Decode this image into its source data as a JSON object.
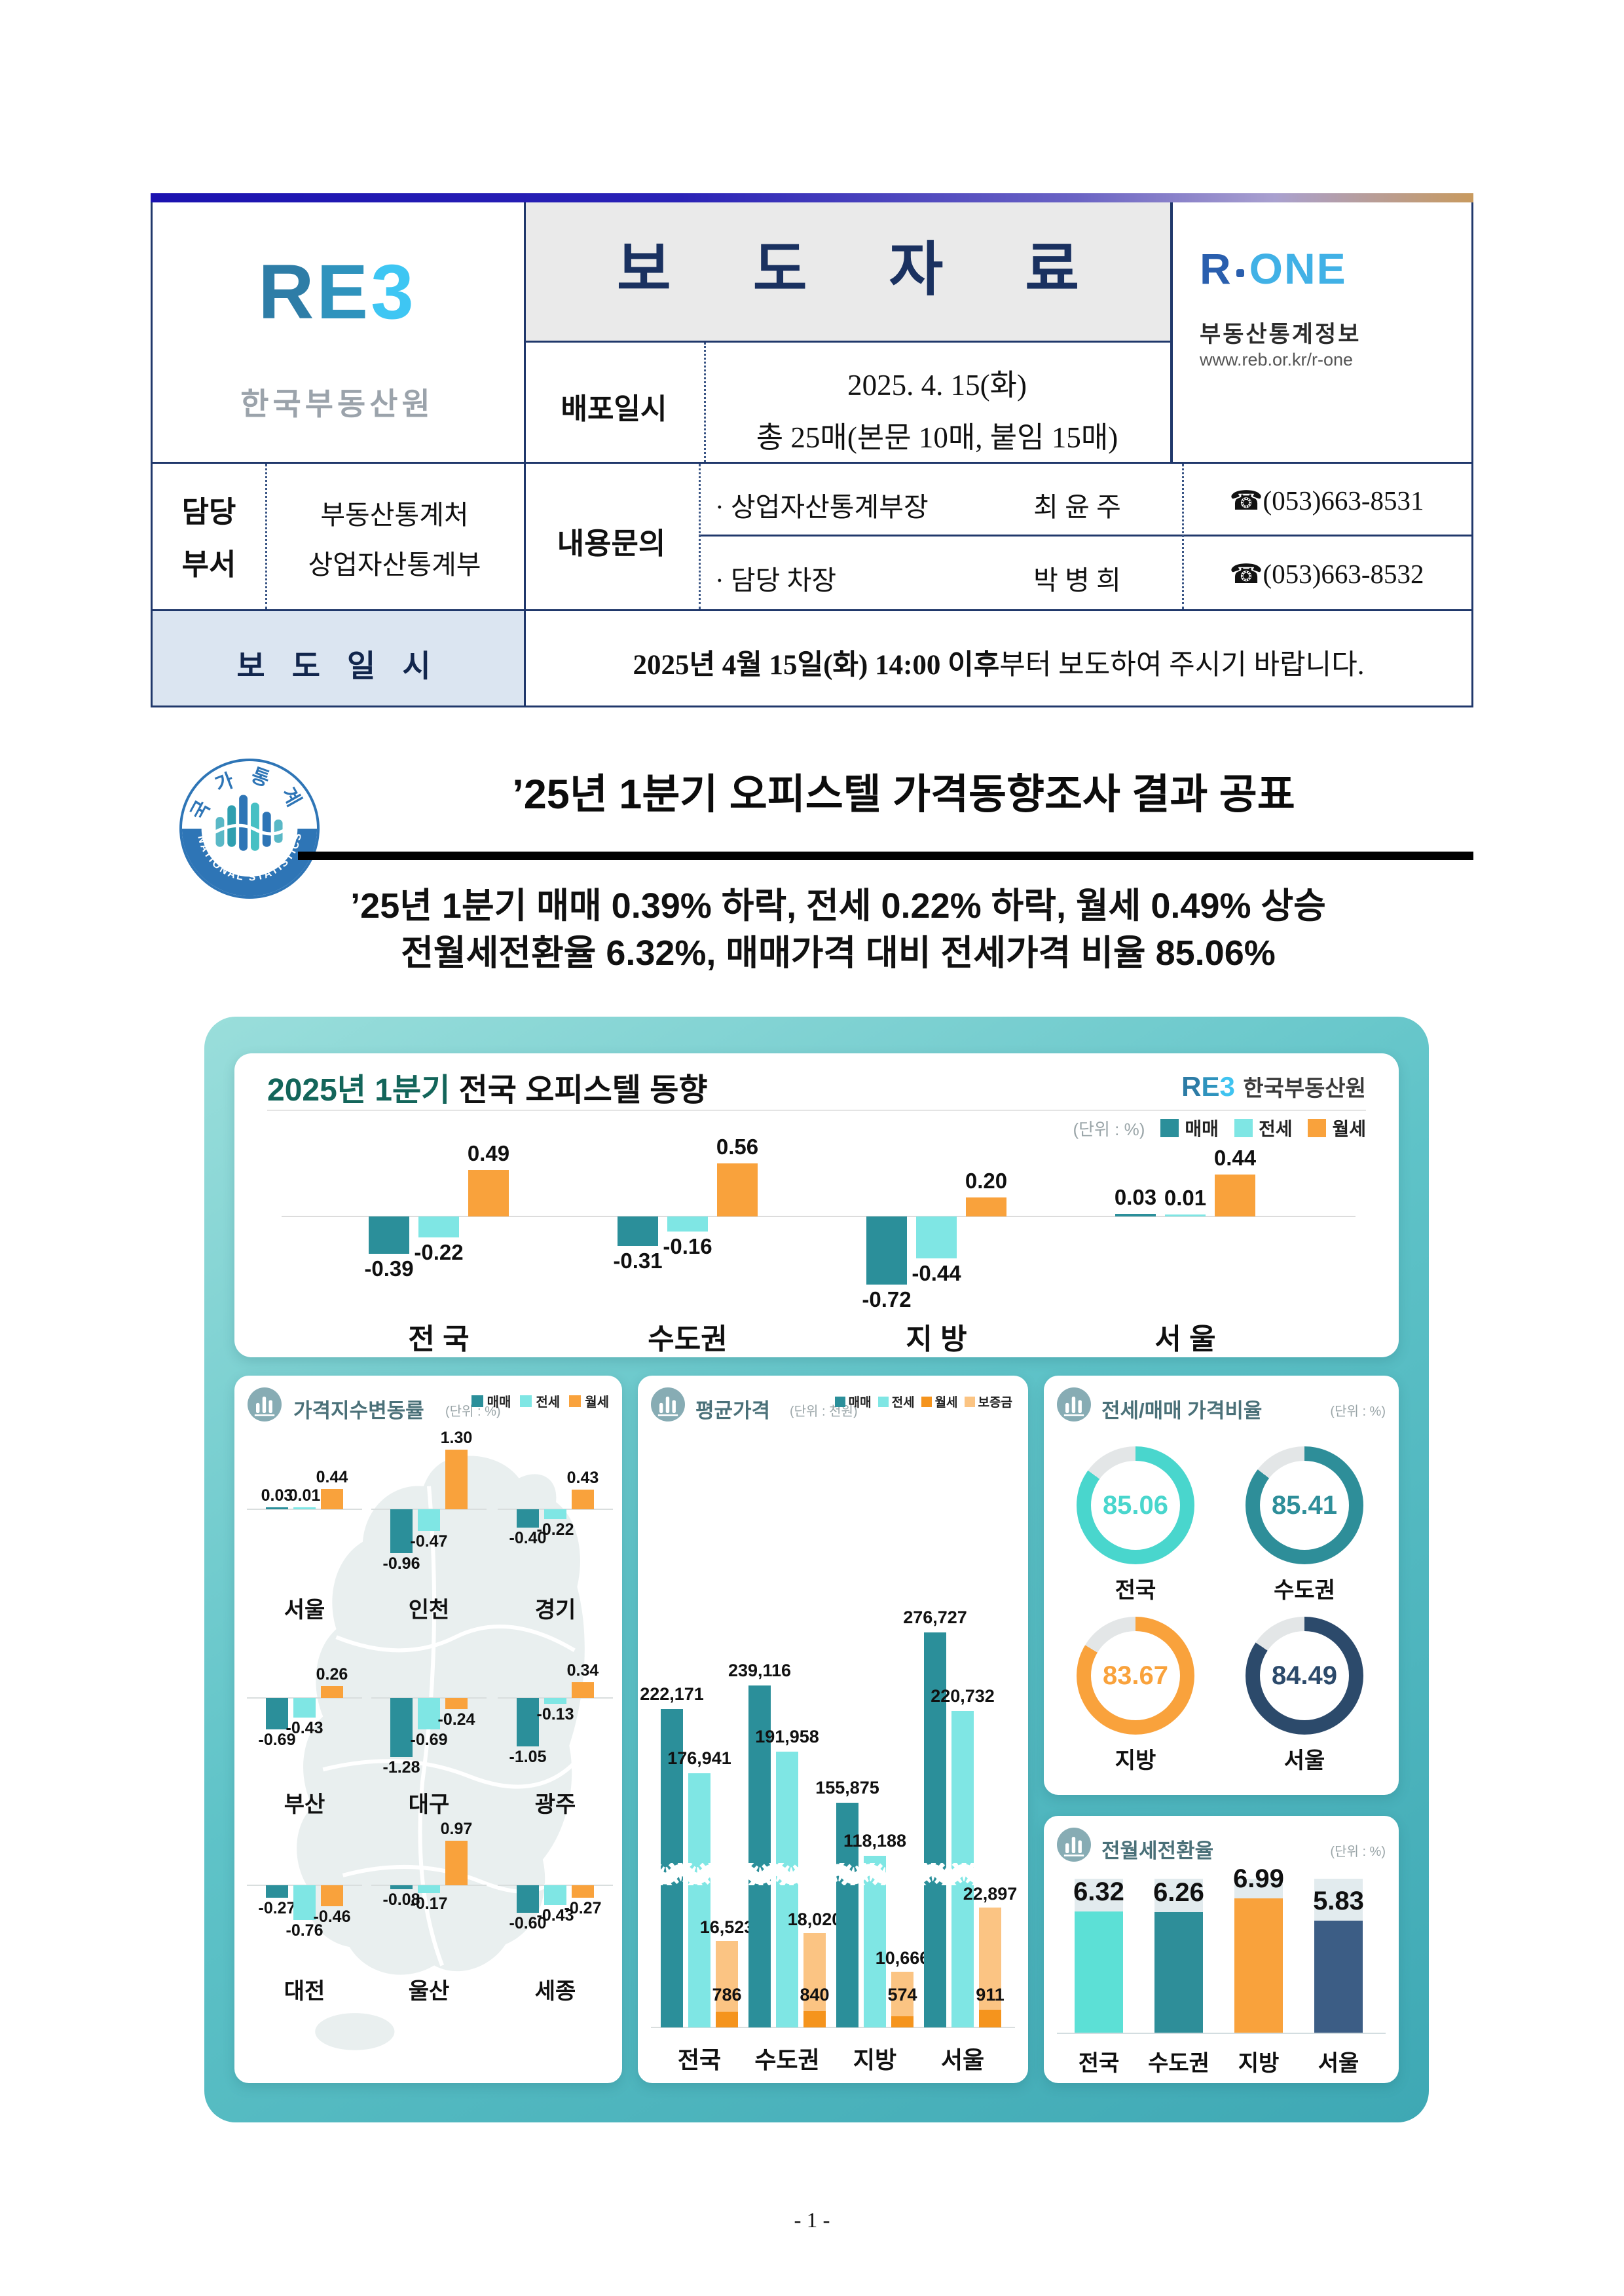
{
  "page": {
    "footer": "- 1 -"
  },
  "header": {
    "logo": {
      "l1": "R",
      "l2": "E",
      "l3": "3",
      "subtitle": "한국부동산원"
    },
    "title": "보 도 자 료",
    "release": {
      "label": "배포일시",
      "date": "2025. 4. 15(화)",
      "pages": "총 25매(본문 10매, 붙임 15매)"
    },
    "rone": {
      "logo_left": "R",
      "logo_right": "ONE",
      "name": "부동산통계정보",
      "url": "www.reb.or.kr/r-one"
    },
    "dept": {
      "label1": "담당",
      "label2": "부서",
      "office1": "부동산통계처",
      "office2": "상업자산통계부",
      "contact_label": "내용문의",
      "contacts": [
        {
          "role": "· 상업자산통계부장",
          "name": "최 윤 주",
          "phone": "☎(053)663-8531"
        },
        {
          "role": "· 담당 차장",
          "name": "박 병 희",
          "phone": "☎(053)663-8532"
        }
      ]
    },
    "embargo": {
      "label": "보 도 일 시",
      "bold": "2025년 4월 15일(화) 14:00 이후",
      "rest": "부터 보도하여 주시기 바랍니다."
    }
  },
  "headline": {
    "badge": {
      "top": "국가통계",
      "bottom": "NATIONAL STATISTICS"
    },
    "title": "’25년 1분기 오피스텔 가격동향조사 결과 공표",
    "sub1": "’25년 1분기 매매 0.39% 하락, 전세 0.22% 하락, 월세 0.49% 상승",
    "sub2": "전월세전환율 6.32%, 매매가격 대비 전세가격 비율 85.06%"
  },
  "infographic": {
    "main": {
      "title_accent": "2025년 1분기",
      "title_rest": " 전국 오피스텔 동향",
      "accent_color": "#13655a",
      "logo_l1": "R",
      "logo_l2": "E",
      "logo_l3": "3",
      "logo_name": "한국부동산원"
    }
  },
  "chart_data": [
    {
      "id": "trend-main",
      "type": "bar",
      "title": "2025년 1분기 전국 오피스텔 동향",
      "unit_label": "(단위 : %)",
      "categories": [
        "전 국",
        "수도권",
        "지 방",
        "서 울"
      ],
      "series": [
        {
          "name": "매매",
          "color": "#2b8f9a",
          "values": [
            -0.39,
            -0.31,
            -0.72,
            0.03
          ]
        },
        {
          "name": "전세",
          "color": "#7fe6e4",
          "values": [
            -0.22,
            -0.16,
            -0.44,
            0.01
          ]
        },
        {
          "name": "월세",
          "color": "#f9a23c",
          "values": [
            0.49,
            0.56,
            0.2,
            0.44
          ]
        }
      ]
    },
    {
      "id": "index-change",
      "type": "bar",
      "title": "가격지수변동률",
      "unit_label": "(단위 : %)",
      "series_names": [
        "매매",
        "전세",
        "월세"
      ],
      "series_colors": [
        "#2b8f9a",
        "#7fe6e4",
        "#f9a23c"
      ],
      "regions": [
        {
          "name": "서울",
          "values": [
            0.03,
            0.01,
            0.44
          ]
        },
        {
          "name": "인천",
          "values": [
            -0.96,
            -0.47,
            1.3
          ]
        },
        {
          "name": "경기",
          "values": [
            -0.4,
            -0.22,
            0.43
          ]
        },
        {
          "name": "부산",
          "values": [
            -0.69,
            -0.43,
            0.26
          ]
        },
        {
          "name": "대구",
          "values": [
            -1.28,
            -0.69,
            -0.24
          ]
        },
        {
          "name": "광주",
          "values": [
            -1.05,
            -0.13,
            0.34
          ]
        },
        {
          "name": "대전",
          "values": [
            -0.27,
            -0.76,
            -0.46
          ]
        },
        {
          "name": "울산",
          "values": [
            -0.08,
            -0.17,
            0.97
          ]
        },
        {
          "name": "세종",
          "values": [
            -0.6,
            -0.43,
            -0.27
          ]
        }
      ]
    },
    {
      "id": "avg-price",
      "type": "bar",
      "title": "평균가격",
      "unit_label": "(단위 : 천원)",
      "axis_break": true,
      "categories": [
        "전국",
        "수도권",
        "지방",
        "서울"
      ],
      "series": [
        {
          "name": "매매",
          "color": "#2b8f9a",
          "values": [
            222171,
            239116,
            155875,
            276727
          ],
          "labels": [
            "222,171",
            "239,116",
            "155,875",
            "276,727"
          ]
        },
        {
          "name": "전세",
          "color": "#7fe6e4",
          "values": [
            176941,
            191958,
            118188,
            220732
          ],
          "labels": [
            "176,941",
            "191,958",
            "118,188",
            "220,732"
          ]
        },
        {
          "name": "월세",
          "color": "#f5941d",
          "values": [
            786,
            840,
            574,
            911
          ],
          "labels": [
            "786",
            "840",
            "574",
            "911"
          ]
        },
        {
          "name": "보증금",
          "color": "#fbc483",
          "values": [
            16523,
            18020,
            10666,
            22897
          ],
          "labels": [
            "16,523",
            "18,020",
            "10,666",
            "22,897"
          ]
        }
      ]
    },
    {
      "id": "jeonse-ratio",
      "type": "donut",
      "title": "전세/매매 가격비율",
      "unit_label": "(단위 : %)",
      "remainder_color": "#e3e6e7",
      "items": [
        {
          "name": "전국",
          "value": 85.06,
          "color": "#49d6cd"
        },
        {
          "name": "수도권",
          "value": 85.41,
          "color": "#2e8e99"
        },
        {
          "name": "지방",
          "value": 83.67,
          "color": "#f9a23c"
        },
        {
          "name": "서울",
          "value": 84.49,
          "color": "#2c4a6b"
        }
      ]
    },
    {
      "id": "conversion-rate",
      "type": "bar",
      "title": "전월세전환율",
      "unit_label": "(단위 : %)",
      "ymax": 8,
      "track_color": "#e2ebee",
      "items": [
        {
          "name": "전국",
          "value": 6.32,
          "color": "#5ce0d6"
        },
        {
          "name": "수도권",
          "value": 6.26,
          "color": "#2e8e99"
        },
        {
          "name": "지방",
          "value": 6.99,
          "color": "#f9a23c"
        },
        {
          "name": "서울",
          "value": 5.83,
          "color": "#3c5d85"
        }
      ]
    }
  ]
}
